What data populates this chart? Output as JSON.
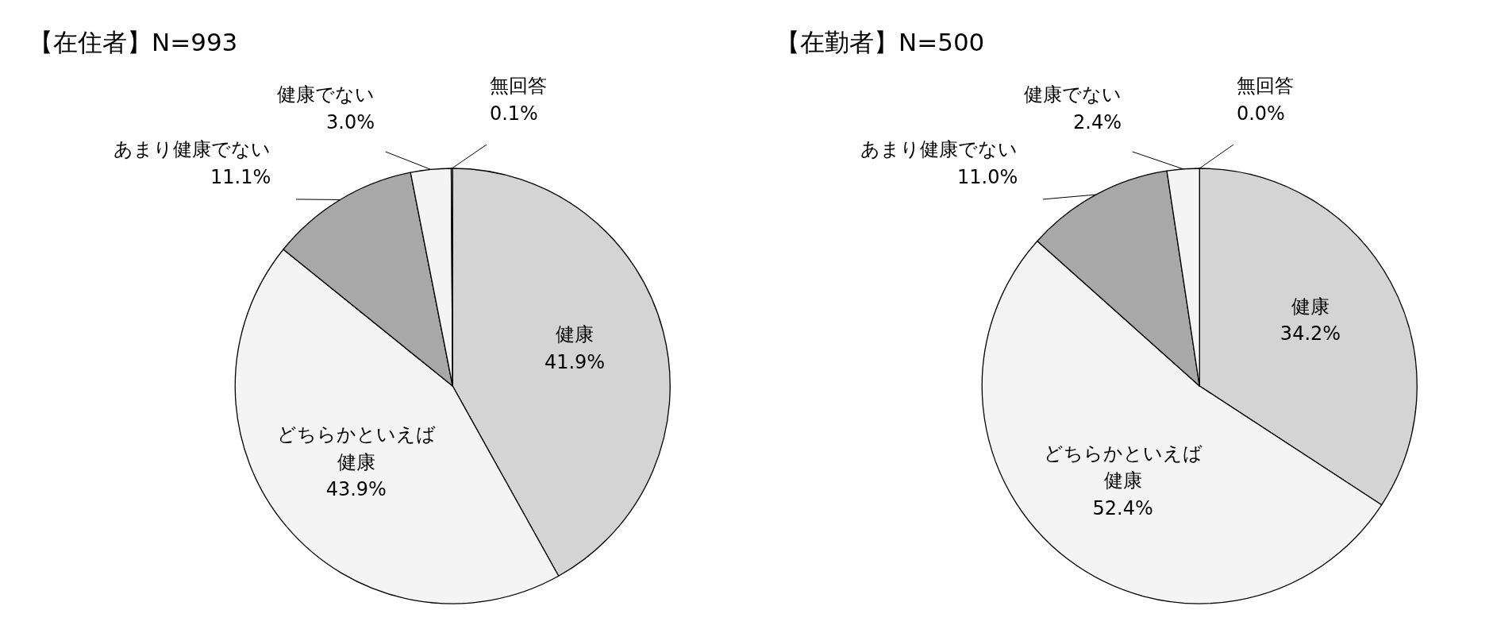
{
  "chart_data": [
    {
      "type": "pie",
      "title": "【在住者】N=993",
      "categories": [
        "健康",
        "どちらかといえば健康",
        "あまり健康でない",
        "健康でない",
        "無回答"
      ],
      "values": [
        41.9,
        43.9,
        11.1,
        3.0,
        0.1
      ],
      "value_labels": [
        "41.9%",
        "43.9%",
        "11.1%",
        "3.0%",
        "0.1%"
      ],
      "colors": [
        "#d4d4d4",
        "#f4f4f4",
        "#a8a8a8",
        "#f4f4f4",
        "#f4f4f4"
      ]
    },
    {
      "type": "pie",
      "title": "【在勤者】N=500",
      "categories": [
        "健康",
        "どちらかといえば健康",
        "あまり健康でない",
        "健康でない",
        "無回答"
      ],
      "values": [
        34.2,
        52.4,
        11.0,
        2.4,
        0.0
      ],
      "value_labels": [
        "34.2%",
        "52.4%",
        "11.0%",
        "2.4%",
        "0.0%"
      ],
      "colors": [
        "#d4d4d4",
        "#f4f4f4",
        "#a8a8a8",
        "#f4f4f4",
        "#f4f4f4"
      ]
    }
  ]
}
